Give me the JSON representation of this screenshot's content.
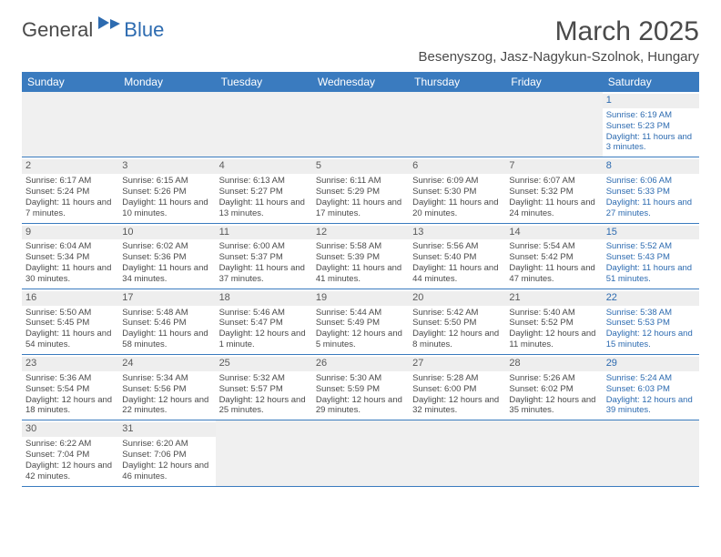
{
  "brand": {
    "part1": "General",
    "part2": "Blue"
  },
  "title": "March 2025",
  "location": "Besenyszog, Jasz-Nagykun-Szolnok, Hungary",
  "colors": {
    "header_bg": "#3a7bbf",
    "accent": "#2d6bb0",
    "text": "#4a4a4a",
    "daynum_bg": "#eeeeee",
    "blank_bg": "#f0f0f0"
  },
  "weekdays": [
    "Sunday",
    "Monday",
    "Tuesday",
    "Wednesday",
    "Thursday",
    "Friday",
    "Saturday"
  ],
  "weeks": [
    [
      {
        "blank": true
      },
      {
        "blank": true
      },
      {
        "blank": true
      },
      {
        "blank": true
      },
      {
        "blank": true
      },
      {
        "blank": true
      },
      {
        "n": "1",
        "sunrise": "Sunrise: 6:19 AM",
        "sunset": "Sunset: 5:23 PM",
        "daylight": "Daylight: 11 hours and 3 minutes."
      }
    ],
    [
      {
        "n": "2",
        "sunrise": "Sunrise: 6:17 AM",
        "sunset": "Sunset: 5:24 PM",
        "daylight": "Daylight: 11 hours and 7 minutes."
      },
      {
        "n": "3",
        "sunrise": "Sunrise: 6:15 AM",
        "sunset": "Sunset: 5:26 PM",
        "daylight": "Daylight: 11 hours and 10 minutes."
      },
      {
        "n": "4",
        "sunrise": "Sunrise: 6:13 AM",
        "sunset": "Sunset: 5:27 PM",
        "daylight": "Daylight: 11 hours and 13 minutes."
      },
      {
        "n": "5",
        "sunrise": "Sunrise: 6:11 AM",
        "sunset": "Sunset: 5:29 PM",
        "daylight": "Daylight: 11 hours and 17 minutes."
      },
      {
        "n": "6",
        "sunrise": "Sunrise: 6:09 AM",
        "sunset": "Sunset: 5:30 PM",
        "daylight": "Daylight: 11 hours and 20 minutes."
      },
      {
        "n": "7",
        "sunrise": "Sunrise: 6:07 AM",
        "sunset": "Sunset: 5:32 PM",
        "daylight": "Daylight: 11 hours and 24 minutes."
      },
      {
        "n": "8",
        "sunrise": "Sunrise: 6:06 AM",
        "sunset": "Sunset: 5:33 PM",
        "daylight": "Daylight: 11 hours and 27 minutes."
      }
    ],
    [
      {
        "n": "9",
        "sunrise": "Sunrise: 6:04 AM",
        "sunset": "Sunset: 5:34 PM",
        "daylight": "Daylight: 11 hours and 30 minutes."
      },
      {
        "n": "10",
        "sunrise": "Sunrise: 6:02 AM",
        "sunset": "Sunset: 5:36 PM",
        "daylight": "Daylight: 11 hours and 34 minutes."
      },
      {
        "n": "11",
        "sunrise": "Sunrise: 6:00 AM",
        "sunset": "Sunset: 5:37 PM",
        "daylight": "Daylight: 11 hours and 37 minutes."
      },
      {
        "n": "12",
        "sunrise": "Sunrise: 5:58 AM",
        "sunset": "Sunset: 5:39 PM",
        "daylight": "Daylight: 11 hours and 41 minutes."
      },
      {
        "n": "13",
        "sunrise": "Sunrise: 5:56 AM",
        "sunset": "Sunset: 5:40 PM",
        "daylight": "Daylight: 11 hours and 44 minutes."
      },
      {
        "n": "14",
        "sunrise": "Sunrise: 5:54 AM",
        "sunset": "Sunset: 5:42 PM",
        "daylight": "Daylight: 11 hours and 47 minutes."
      },
      {
        "n": "15",
        "sunrise": "Sunrise: 5:52 AM",
        "sunset": "Sunset: 5:43 PM",
        "daylight": "Daylight: 11 hours and 51 minutes."
      }
    ],
    [
      {
        "n": "16",
        "sunrise": "Sunrise: 5:50 AM",
        "sunset": "Sunset: 5:45 PM",
        "daylight": "Daylight: 11 hours and 54 minutes."
      },
      {
        "n": "17",
        "sunrise": "Sunrise: 5:48 AM",
        "sunset": "Sunset: 5:46 PM",
        "daylight": "Daylight: 11 hours and 58 minutes."
      },
      {
        "n": "18",
        "sunrise": "Sunrise: 5:46 AM",
        "sunset": "Sunset: 5:47 PM",
        "daylight": "Daylight: 12 hours and 1 minute."
      },
      {
        "n": "19",
        "sunrise": "Sunrise: 5:44 AM",
        "sunset": "Sunset: 5:49 PM",
        "daylight": "Daylight: 12 hours and 5 minutes."
      },
      {
        "n": "20",
        "sunrise": "Sunrise: 5:42 AM",
        "sunset": "Sunset: 5:50 PM",
        "daylight": "Daylight: 12 hours and 8 minutes."
      },
      {
        "n": "21",
        "sunrise": "Sunrise: 5:40 AM",
        "sunset": "Sunset: 5:52 PM",
        "daylight": "Daylight: 12 hours and 11 minutes."
      },
      {
        "n": "22",
        "sunrise": "Sunrise: 5:38 AM",
        "sunset": "Sunset: 5:53 PM",
        "daylight": "Daylight: 12 hours and 15 minutes."
      }
    ],
    [
      {
        "n": "23",
        "sunrise": "Sunrise: 5:36 AM",
        "sunset": "Sunset: 5:54 PM",
        "daylight": "Daylight: 12 hours and 18 minutes."
      },
      {
        "n": "24",
        "sunrise": "Sunrise: 5:34 AM",
        "sunset": "Sunset: 5:56 PM",
        "daylight": "Daylight: 12 hours and 22 minutes."
      },
      {
        "n": "25",
        "sunrise": "Sunrise: 5:32 AM",
        "sunset": "Sunset: 5:57 PM",
        "daylight": "Daylight: 12 hours and 25 minutes."
      },
      {
        "n": "26",
        "sunrise": "Sunrise: 5:30 AM",
        "sunset": "Sunset: 5:59 PM",
        "daylight": "Daylight: 12 hours and 29 minutes."
      },
      {
        "n": "27",
        "sunrise": "Sunrise: 5:28 AM",
        "sunset": "Sunset: 6:00 PM",
        "daylight": "Daylight: 12 hours and 32 minutes."
      },
      {
        "n": "28",
        "sunrise": "Sunrise: 5:26 AM",
        "sunset": "Sunset: 6:02 PM",
        "daylight": "Daylight: 12 hours and 35 minutes."
      },
      {
        "n": "29",
        "sunrise": "Sunrise: 5:24 AM",
        "sunset": "Sunset: 6:03 PM",
        "daylight": "Daylight: 12 hours and 39 minutes."
      }
    ],
    [
      {
        "n": "30",
        "sunrise": "Sunrise: 6:22 AM",
        "sunset": "Sunset: 7:04 PM",
        "daylight": "Daylight: 12 hours and 42 minutes."
      },
      {
        "n": "31",
        "sunrise": "Sunrise: 6:20 AM",
        "sunset": "Sunset: 7:06 PM",
        "daylight": "Daylight: 12 hours and 46 minutes."
      },
      {
        "blank": true
      },
      {
        "blank": true
      },
      {
        "blank": true
      },
      {
        "blank": true
      },
      {
        "blank": true
      }
    ]
  ]
}
